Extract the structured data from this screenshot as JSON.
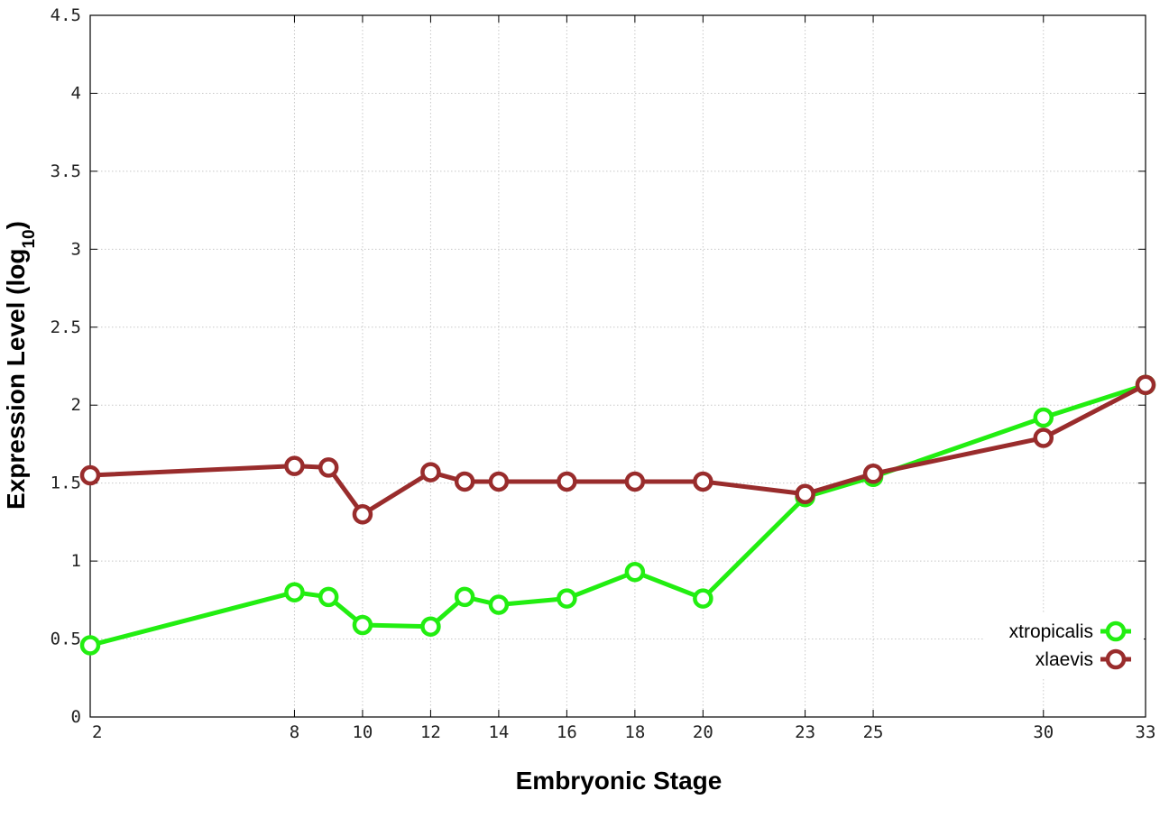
{
  "chart_data": {
    "type": "line",
    "title": "",
    "xlabel": "Embryonic Stage",
    "ylabel_main": "Expression Level (log",
    "ylabel_sub": "10",
    "ylabel_close": ")",
    "x": [
      2,
      8,
      9,
      10,
      12,
      13,
      14,
      16,
      18,
      20,
      23,
      25,
      30,
      33
    ],
    "xticks": [
      2,
      8,
      10,
      12,
      14,
      16,
      18,
      20,
      23,
      25,
      30,
      33
    ],
    "xlim": [
      2,
      33
    ],
    "yticks": [
      "0",
      "0.5",
      "1",
      "1.5",
      "2",
      "2.5",
      "3",
      "3.5",
      "4",
      "4.5"
    ],
    "ylim": [
      0,
      4.5
    ],
    "grid": true,
    "legend_position": "bottom-right",
    "series": [
      {
        "name": "xtropicalis",
        "color": "#22ee11",
        "values": [
          0.46,
          0.8,
          0.77,
          0.59,
          0.58,
          0.77,
          0.72,
          0.76,
          0.93,
          0.76,
          1.41,
          1.54,
          1.92,
          2.13
        ]
      },
      {
        "name": "xlaevis",
        "color": "#992c2c",
        "values": [
          1.55,
          1.61,
          1.6,
          1.3,
          1.57,
          1.51,
          1.51,
          1.51,
          1.51,
          1.51,
          1.43,
          1.56,
          1.79,
          2.13
        ]
      }
    ]
  }
}
